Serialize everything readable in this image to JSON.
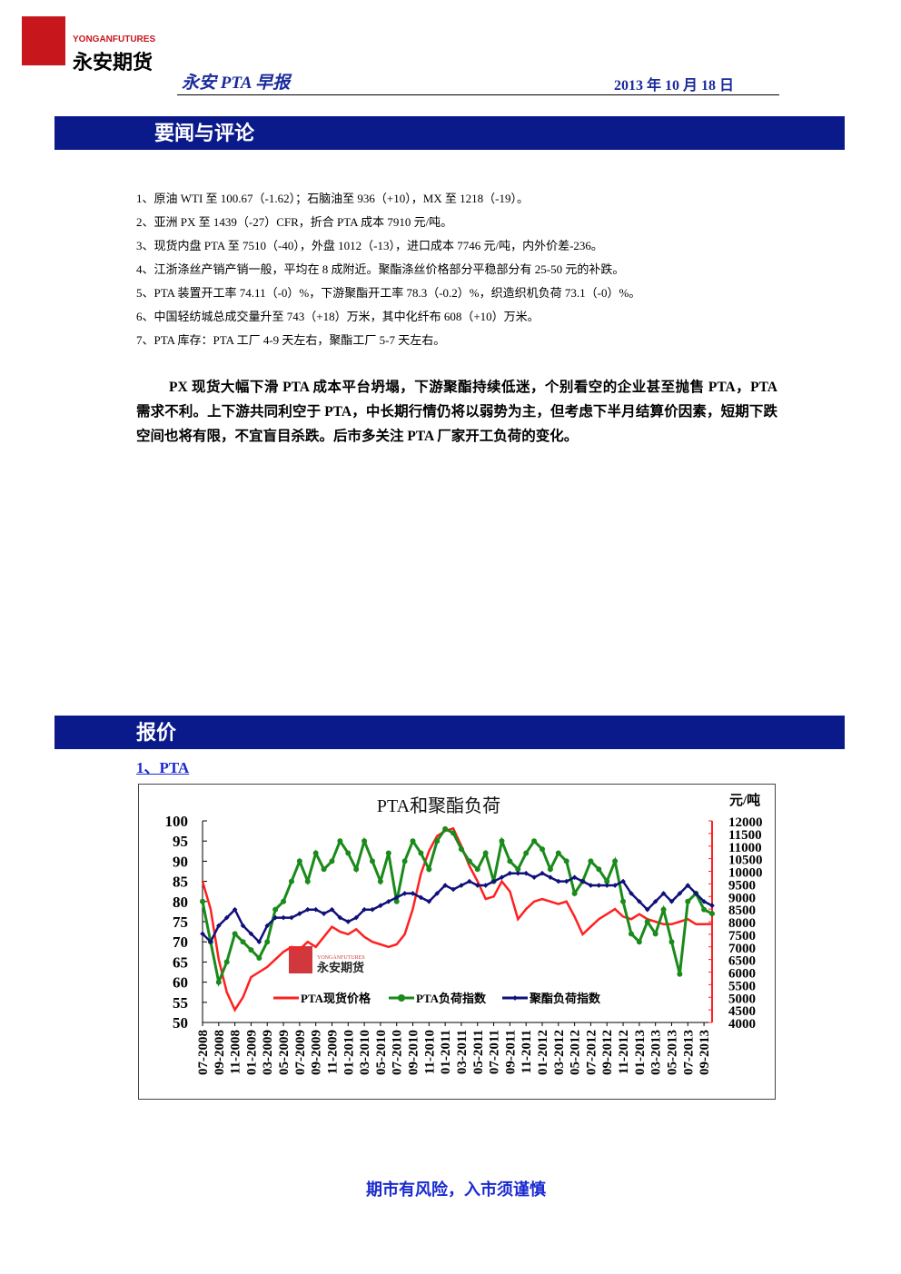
{
  "header": {
    "brand_en": "YONGANFUTURES",
    "brand_cn": "永安期货",
    "report_title": "永安 PTA 早报",
    "date": "2013 年 10 月 18 日"
  },
  "section1": {
    "title": "要闻与评论",
    "news": [
      "1、原油 WTI 至 100.67（-1.62）；石脑油至 936（+10），MX 至 1218（-19）。",
      "2、亚洲 PX 至 1439（-27）CFR，折合 PTA 成本 7910 元/吨。",
      "3、现货内盘 PTA 至 7510（-40），外盘 1012（-13），进口成本 7746 元/吨，内外价差-236。",
      "4、江浙涤丝产销产销一般，平均在 8 成附近。聚酯涤丝价格部分平稳部分有 25-50 元的补跌。",
      "5、PTA 装置开工率 74.11（-0）%，下游聚酯开工率 78.3（-0.2）%，织造织机负荷 73.1（-0）%。",
      "6、中国轻纺城总成交量升至 743（+18）万米，其中化纤布 608（+10）万米。",
      "7、PTA  库存：PTA 工厂 4-9 天左右，聚酯工厂 5-7 天左右。"
    ],
    "comment": "PX 现货大幅下滑 PTA 成本平台坍塌，下游聚酯持续低迷，个别看空的企业甚至抛售 PTA，PTA 需求不利。上下游共同利空于 PTA，中长期行情仍将以弱势为主，但考虑下半月结算价因素，短期下跌空间也将有限，不宜盲目杀跌。后市多关注 PTA 厂家开工负荷的变化。"
  },
  "section2": {
    "title": "报价",
    "subtitle": "1、PTA"
  },
  "chart_data": {
    "type": "line",
    "title": "PTA和聚酯负荷",
    "y2_label": "元/吨",
    "categories": [
      "07-2008",
      null,
      "09-2008",
      null,
      "11-2008",
      null,
      "01-2009",
      null,
      "03-2009",
      null,
      "05-2009",
      null,
      "07-2009",
      null,
      "09-2009",
      null,
      "11-2009",
      null,
      "01-2010",
      null,
      "03-2010",
      null,
      "05-2010",
      null,
      "07-2010",
      null,
      "09-2010",
      null,
      "11-2010",
      null,
      "01-2011",
      null,
      "03-2011",
      null,
      "05-2011",
      null,
      "07-2011",
      null,
      "09-2011",
      null,
      "11-2011",
      null,
      "01-2012",
      null,
      "03-2012",
      null,
      "05-2012",
      null,
      "07-2012",
      null,
      "09-2012",
      null,
      "11-2012",
      null,
      "01-2013",
      null,
      "03-2013",
      null,
      "05-2013",
      null,
      "07-2013",
      null,
      "09-2013",
      null
    ],
    "series": [
      {
        "name": "PTA现货价格",
        "color": "#ff2020",
        "axis": "y2",
        "marker": "none",
        "values": [
          9600,
          8500,
          6500,
          5200,
          4500,
          5000,
          5800,
          6000,
          6200,
          6500,
          6800,
          7000,
          6900,
          7200,
          7000,
          7400,
          7800,
          7600,
          7500,
          7700,
          7400,
          7200,
          7100,
          7000,
          7100,
          7500,
          8500,
          9900,
          10800,
          11400,
          11600,
          11700,
          11000,
          10200,
          9600,
          8900,
          9000,
          9600,
          9200,
          8100,
          8500,
          8800,
          8900,
          8800,
          8700,
          8800,
          8200,
          7500,
          7800,
          8100,
          8300,
          8500,
          8200,
          8100,
          8300,
          8100,
          8000,
          7900,
          7900,
          8000,
          8100,
          7900,
          7900,
          7910
        ]
      },
      {
        "name": "PTA负荷指数",
        "color": "#1a8a1a",
        "marker": "circle",
        "values": [
          80,
          70,
          60,
          65,
          72,
          70,
          68,
          66,
          70,
          78,
          80,
          85,
          90,
          85,
          92,
          88,
          90,
          95,
          92,
          88,
          95,
          90,
          85,
          92,
          80,
          90,
          95,
          92,
          88,
          95,
          98,
          97,
          93,
          90,
          88,
          92,
          85,
          95,
          90,
          88,
          92,
          95,
          93,
          88,
          92,
          90,
          82,
          85,
          90,
          88,
          85,
          90,
          80,
          72,
          70,
          75,
          72,
          78,
          70,
          62,
          80,
          82,
          78,
          77
        ]
      },
      {
        "name": "聚酯负荷指数",
        "color": "#10107a",
        "marker": "diamond",
        "values": [
          72,
          70,
          74,
          76,
          78,
          74,
          72,
          70,
          74,
          76,
          76,
          76,
          77,
          78,
          78,
          77,
          78,
          76,
          75,
          76,
          78,
          78,
          79,
          80,
          81,
          82,
          82,
          81,
          80,
          82,
          84,
          83,
          84,
          85,
          84,
          84,
          85,
          86,
          87,
          87,
          87,
          86,
          87,
          86,
          85,
          85,
          86,
          85,
          84,
          84,
          84,
          84,
          85,
          82,
          80,
          78,
          80,
          82,
          80,
          82,
          84,
          82,
          80,
          79
        ]
      }
    ],
    "ylim": [
      50,
      100
    ],
    "yticks": [
      50,
      55,
      60,
      65,
      70,
      75,
      80,
      85,
      90,
      95,
      100
    ],
    "y2lim": [
      4000,
      12000
    ],
    "y2ticks": [
      4000,
      4500,
      5000,
      5500,
      6000,
      6500,
      7000,
      7500,
      8000,
      8500,
      9000,
      9500,
      10000,
      10500,
      11000,
      11500,
      12000
    ],
    "legend": "lower-left"
  },
  "footer": "期市有风险，入市须谨慎"
}
